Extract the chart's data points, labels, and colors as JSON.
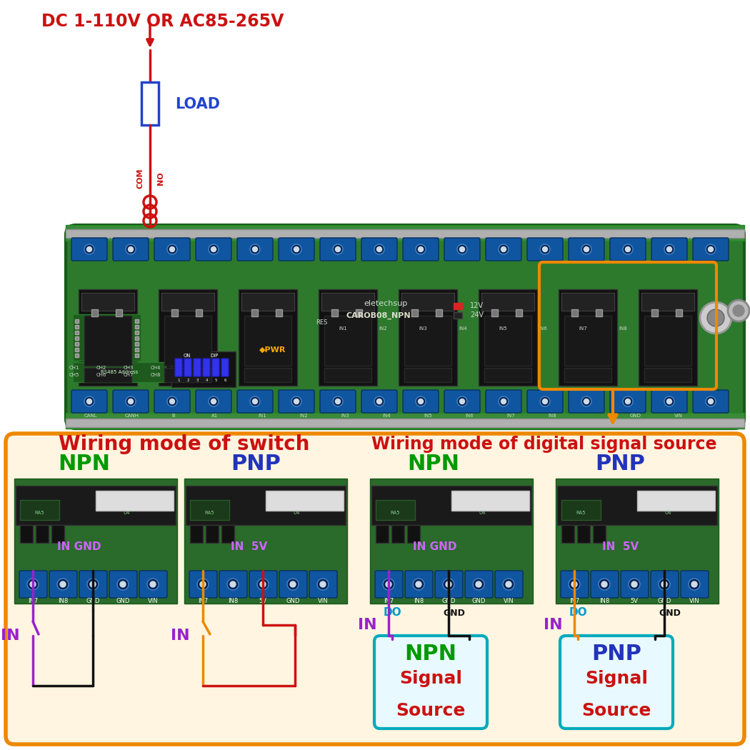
{
  "bg": "#ffffff",
  "voltage_text": "DC 1-110V OR AC85-265V",
  "voltage_color": "#cc1111",
  "load_text": "LOAD",
  "load_color": "#2244cc",
  "board_green": "#2d7a2d",
  "board_edge": "#1a5a1a",
  "rail_metal": "#b0b0b0",
  "relay_black": "#111111",
  "term_blue": "#1055a0",
  "term_dark": "#073060",
  "orange": "#ee8800",
  "orange_bg": "#fff5e0",
  "switch_title": "Wiring mode of switch",
  "digital_title": "Wiring mode of digital signal source",
  "title_red": "#cc1111",
  "npn_green": "#009900",
  "pnp_blue": "#2233bb",
  "in_purple": "#9922cc",
  "gnd_black": "#111111",
  "do_cyan": "#0099cc",
  "signal_red": "#cc1111",
  "cyan_box": "#00aabb",
  "wire_orange": "#ee8800",
  "wire_red": "#cc1111",
  "pcb_green": "#2a6a2a",
  "pcb_edge": "#1a5a1a",
  "com_red": "#cc1111"
}
